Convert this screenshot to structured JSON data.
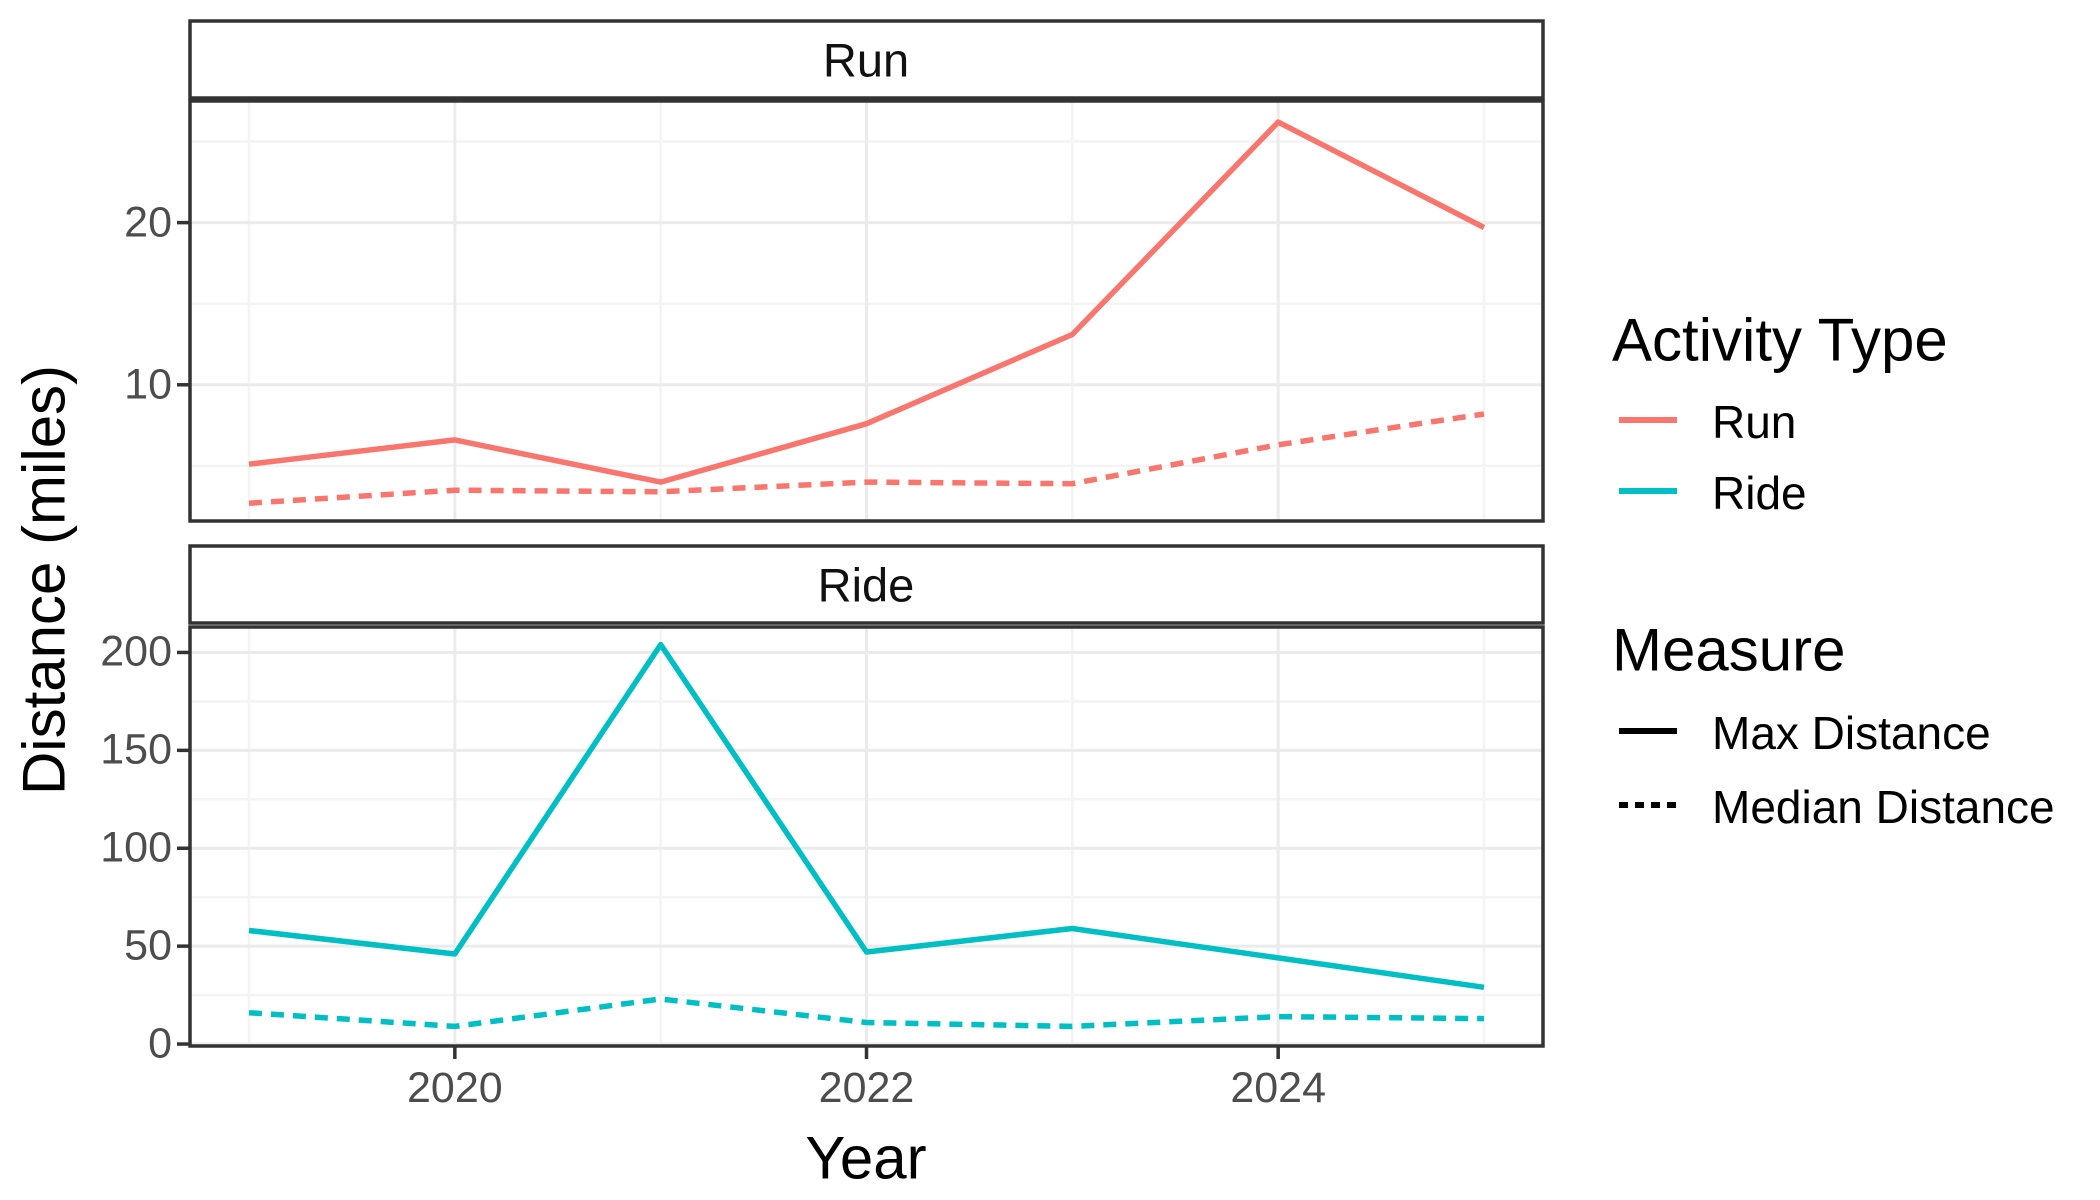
{
  "chart_data": {
    "type": "line",
    "xlabel": "Year",
    "ylabel": "Distance (miles)",
    "x": [
      2019,
      2020,
      2021,
      2022,
      2023,
      2024,
      2025
    ],
    "x_ticks": {
      "values": [
        2020,
        2022,
        2024
      ],
      "labels": [
        "2020",
        "2022",
        "2024"
      ]
    },
    "x_minor": [
      2019,
      2021,
      2023,
      2025
    ],
    "grid": true,
    "legend_position": "right",
    "facets": [
      {
        "label": "Run",
        "color": "#F8766D",
        "ylim": [
          1.6,
          27.5
        ],
        "y_ticks": {
          "values": [
            10,
            20
          ],
          "labels": [
            "10",
            "20"
          ]
        },
        "y_minor": [
          5,
          15,
          25
        ],
        "series": [
          {
            "name": "Max Distance",
            "linetype": "solid",
            "values": [
              5.1,
              6.6,
              4.0,
              7.6,
              13.1,
              26.2,
              19.7
            ]
          },
          {
            "name": "Median Distance",
            "linetype": "dashed",
            "values": [
              2.7,
              3.5,
              3.4,
              4.0,
              3.9,
              6.3,
              8.2
            ]
          }
        ]
      },
      {
        "label": "Ride",
        "color": "#00BFC4",
        "ylim": [
          -1,
          213
        ],
        "y_ticks": {
          "values": [
            0,
            50,
            100,
            150,
            200
          ],
          "labels": [
            "0",
            "50",
            "100",
            "150",
            "200"
          ]
        },
        "y_minor": [
          25,
          75,
          125,
          175
        ],
        "series": [
          {
            "name": "Max Distance",
            "linetype": "solid",
            "values": [
              58,
              46,
              204,
              47,
              59,
              44,
              29
            ]
          },
          {
            "name": "Median Distance",
            "linetype": "dashed",
            "values": [
              16,
              9,
              23,
              11,
              9,
              14,
              13
            ]
          }
        ]
      }
    ],
    "legend": {
      "groups": [
        {
          "title": "Activity Type",
          "items": [
            {
              "label": "Run",
              "color": "#F8766D",
              "linetype": "solid"
            },
            {
              "label": "Ride",
              "color": "#00BFC4",
              "linetype": "solid"
            }
          ]
        },
        {
          "title": "Measure",
          "items": [
            {
              "label": "Max Distance",
              "color": "#000000",
              "linetype": "solid"
            },
            {
              "label": "Median Distance",
              "color": "#000000",
              "linetype": "dashed"
            }
          ]
        }
      ]
    }
  },
  "colors": {
    "background": "#FFFFFF",
    "panel_border": "#333333",
    "major_grid": "#EBEBEB",
    "minor_grid": "#F4F4F4",
    "tick_mark": "#333333",
    "tick_text": "#4D4D4D"
  }
}
